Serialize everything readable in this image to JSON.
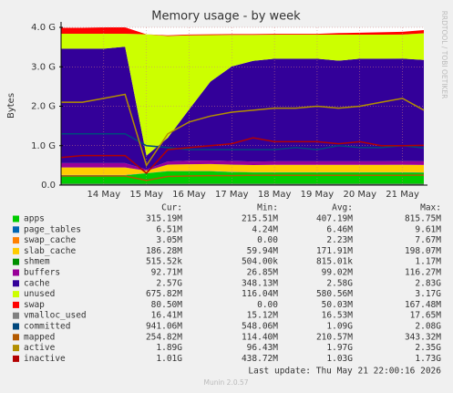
{
  "chart_data": {
    "type": "stacked_area",
    "title": "Memory usage - by week",
    "ylabel": "Bytes",
    "side_text": "RRDTOOL / TOBI OETIKER",
    "footer": "Last update: Thu May 21 22:00:16 2026",
    "version": "Munin 2.0.57",
    "grid": true,
    "ylim": [
      0,
      4000000000
    ],
    "yticks": [
      {
        "value": 0,
        "label": "0.0"
      },
      {
        "value": 1000000000,
        "label": "1.0 G"
      },
      {
        "value": 2000000000,
        "label": "2.0 G"
      },
      {
        "value": 3000000000,
        "label": "3.0 G"
      },
      {
        "value": 4000000000,
        "label": "4.0 G"
      }
    ],
    "categories": [
      null,
      null,
      "14 May",
      null,
      "15 May",
      null,
      "16 May",
      null,
      "17 May",
      null,
      "18 May",
      null,
      "19 May",
      null,
      "20 May",
      null,
      "21 May",
      null
    ],
    "stats_headers": [
      "Cur:",
      "Min:",
      "Avg:",
      "Max:"
    ],
    "series": [
      {
        "name": "apps",
        "kind": "area",
        "color": "#00CC00",
        "values": [
          250000000.0,
          250000000.0,
          250000000.0,
          250000000.0,
          300000000.0,
          350000000.0,
          350000000.0,
          350000000.0,
          330000000.0,
          320000000.0,
          320000000.0,
          320000000.0,
          320000000.0,
          320000000.0,
          320000000.0,
          320000000.0,
          320000000.0,
          315000000.0
        ],
        "stats": [
          "315.19M",
          "215.51M",
          "407.19M",
          "815.75M"
        ]
      },
      {
        "name": "page_tables",
        "kind": "area",
        "color": "#0066B3",
        "values": [
          6500000.0,
          6500000.0,
          6500000.0,
          6500000.0,
          4300000.0,
          6500000.0,
          6500000.0,
          6500000.0,
          6500000.0,
          6500000.0,
          6500000.0,
          6500000.0,
          6500000.0,
          6500000.0,
          6500000.0,
          6500000.0,
          6500000.0,
          6500000.0
        ],
        "stats": [
          "6.51M",
          "4.24M",
          "6.46M",
          "9.61M"
        ]
      },
      {
        "name": "swap_cache",
        "kind": "area",
        "color": "#FF8000",
        "values": [
          2000000.0,
          2000000.0,
          2000000.0,
          2000000.0,
          0,
          2000000.0,
          2000000.0,
          2000000.0,
          2000000.0,
          2000000.0,
          2000000.0,
          2000000.0,
          2000000.0,
          3000000.0,
          3000000.0,
          3000000.0,
          3000000.0,
          3000000.0
        ],
        "stats": [
          "3.05M",
          "0.00",
          "2.23M",
          "7.67M"
        ]
      },
      {
        "name": "slab_cache",
        "kind": "area",
        "color": "#FFCC00",
        "values": [
          190000000.0,
          190000000.0,
          190000000.0,
          190000000.0,
          60000000.0,
          160000000.0,
          170000000.0,
          175000000.0,
          180000000.0,
          180000000.0,
          185000000.0,
          185000000.0,
          185000000.0,
          185000000.0,
          185000000.0,
          185000000.0,
          186000000.0,
          186000000.0
        ],
        "stats": [
          "186.28M",
          "59.94M",
          "171.91M",
          "198.07M"
        ]
      },
      {
        "name": "shmem",
        "kind": "area",
        "color": "#008F00",
        "values": [
          500000.0,
          500000.0,
          500000.0,
          500000.0,
          500000.0,
          500000.0,
          500000.0,
          500000.0,
          500000.0,
          500000.0,
          500000.0,
          500000.0,
          500000.0,
          500000.0,
          500000.0,
          500000.0,
          500000.0,
          500000.0
        ],
        "stats": [
          "515.52k",
          "504.00k",
          "815.01k",
          "1.17M"
        ]
      },
      {
        "name": "buffers",
        "kind": "area",
        "color": "#990099",
        "values": [
          110000000.0,
          110000000.0,
          110000000.0,
          110000000.0,
          30000000.0,
          80000000.0,
          90000000.0,
          90000000.0,
          90000000.0,
          90000000.0,
          90000000.0,
          90000000.0,
          90000000.0,
          90000000.0,
          90000000.0,
          90000000.0,
          92000000.0,
          93000000.0
        ],
        "stats": [
          "92.71M",
          "26.85M",
          "99.02M",
          "116.27M"
        ]
      },
      {
        "name": "cache",
        "kind": "area",
        "color": "#330099",
        "values": [
          2900000000.0,
          2900000000.0,
          2900000000.0,
          2950000000.0,
          350000000.0,
          600000000.0,
          1300000000.0,
          2000000000.0,
          2400000000.0,
          2550000000.0,
          2600000000.0,
          2600000000.0,
          2600000000.0,
          2550000000.0,
          2600000000.0,
          2600000000.0,
          2600000000.0,
          2570000000.0
        ],
        "stats": [
          "2.57G",
          "348.13M",
          "2.58G",
          "2.83G"
        ]
      },
      {
        "name": "unused",
        "kind": "area",
        "color": "#CCFF00",
        "values": [
          380000000.0,
          380000000.0,
          380000000.0,
          330000000.0,
          3080000000.0,
          2580000000.0,
          1880000000.0,
          1180000000.0,
          800000000.0,
          660000000.0,
          610000000.0,
          610000000.0,
          610000000.0,
          660000000.0,
          610000000.0,
          610000000.0,
          610000000.0,
          676000000.0
        ],
        "stats": [
          "675.82M",
          "116.04M",
          "580.56M",
          "3.17G"
        ]
      },
      {
        "name": "swap",
        "kind": "area",
        "color": "#FF0000",
        "values": [
          150000000.0,
          150000000.0,
          160000000.0,
          160000000.0,
          0,
          20000000.0,
          20000000.0,
          20000000.0,
          20000000.0,
          20000000.0,
          20000000.0,
          20000000.0,
          20000000.0,
          40000000.0,
          50000000.0,
          60000000.0,
          70000000.0,
          80500000.0
        ],
        "stats": [
          "80.50M",
          "0.00",
          "50.03M",
          "167.48M"
        ]
      },
      {
        "name": "vmalloc_used",
        "kind": "line",
        "color": "#808080",
        "values": [
          16000000.0,
          16000000.0,
          16000000.0,
          16000000.0,
          15000000.0,
          16000000.0,
          16000000.0,
          16000000.0,
          16000000.0,
          16000000.0,
          16000000.0,
          16000000.0,
          16000000.0,
          16000000.0,
          16000000.0,
          16000000.0,
          16000000.0,
          16400000.0
        ],
        "stats": [
          "16.41M",
          "15.12M",
          "16.53M",
          "17.65M"
        ]
      },
      {
        "name": "committed",
        "kind": "line",
        "color": "#00487D",
        "values": [
          1300000000.0,
          1300000000.0,
          1300000000.0,
          1300000000.0,
          1000000000.0,
          950000000.0,
          900000000.0,
          900000000.0,
          900000000.0,
          900000000.0,
          900000000.0,
          950000000.0,
          900000000.0,
          1000000000.0,
          950000000.0,
          950000000.0,
          1000000000.0,
          941000000.0
        ],
        "stats": [
          "941.06M",
          "548.06M",
          "1.09G",
          "2.08G"
        ]
      },
      {
        "name": "mapped",
        "kind": "line",
        "color": "#B35A00",
        "values": [
          230000000.0,
          230000000.0,
          230000000.0,
          230000000.0,
          120000000.0,
          220000000.0,
          230000000.0,
          240000000.0,
          240000000.0,
          250000000.0,
          250000000.0,
          250000000.0,
          250000000.0,
          250000000.0,
          250000000.0,
          250000000.0,
          250000000.0,
          255000000.0
        ],
        "stats": [
          "254.82M",
          "114.40M",
          "210.57M",
          "343.32M"
        ]
      },
      {
        "name": "active",
        "kind": "line",
        "color": "#B38F00",
        "values": [
          2100000000.0,
          2100000000.0,
          2200000000.0,
          2300000000.0,
          500000000.0,
          1300000000.0,
          1600000000.0,
          1750000000.0,
          1850000000.0,
          1900000000.0,
          1950000000.0,
          1950000000.0,
          2000000000.0,
          1950000000.0,
          2000000000.0,
          2100000000.0,
          2200000000.0,
          1900000000.0
        ],
        "stats": [
          "1.89G",
          "96.43M",
          "1.97G",
          "2.35G"
        ]
      },
      {
        "name": "inactive",
        "kind": "line",
        "color": "#B30000",
        "values": [
          700000000.0,
          750000000.0,
          750000000.0,
          750000000.0,
          300000000.0,
          900000000.0,
          950000000.0,
          1000000000.0,
          1050000000.0,
          1200000000.0,
          1100000000.0,
          1100000000.0,
          1100000000.0,
          1050000000.0,
          1100000000.0,
          1000000000.0,
          1000000000.0,
          1010000000.0
        ],
        "stats": [
          "1.01G",
          "438.72M",
          "1.03G",
          "1.73G"
        ]
      }
    ]
  }
}
